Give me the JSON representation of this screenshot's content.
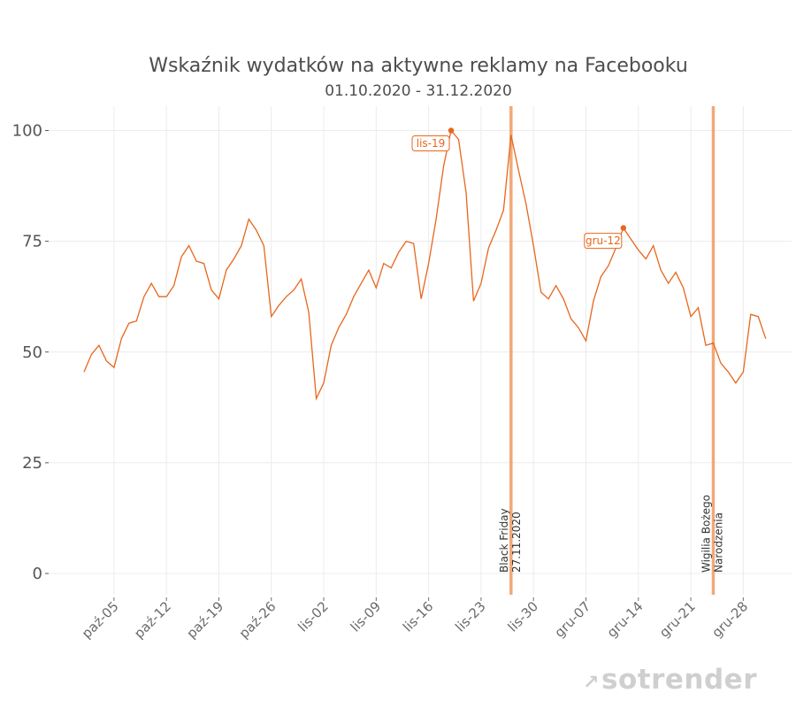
{
  "brand": {
    "mark": "↗",
    "name": "sotrender"
  },
  "chart_data": {
    "type": "line",
    "title": "Wskaźnik wydatków na aktywne reklamy na Facebooku",
    "subtitle": "01.10.2020 - 31.12.2020",
    "xlabel": "",
    "ylabel": "",
    "ylim": [
      -5,
      105
    ],
    "yticks": [
      0,
      25,
      50,
      75,
      100
    ],
    "x_start": "2020-10-01",
    "xticks": [
      {
        "date": "2020-10-05",
        "label": "paź-05"
      },
      {
        "date": "2020-10-12",
        "label": "paź-12"
      },
      {
        "date": "2020-10-19",
        "label": "paź-19"
      },
      {
        "date": "2020-10-26",
        "label": "paź-26"
      },
      {
        "date": "2020-11-02",
        "label": "lis-02"
      },
      {
        "date": "2020-11-09",
        "label": "lis-09"
      },
      {
        "date": "2020-11-16",
        "label": "lis-16"
      },
      {
        "date": "2020-11-23",
        "label": "lis-23"
      },
      {
        "date": "2020-11-30",
        "label": "lis-30"
      },
      {
        "date": "2020-12-07",
        "label": "gru-07"
      },
      {
        "date": "2020-12-14",
        "label": "gru-14"
      },
      {
        "date": "2020-12-21",
        "label": "gru-21"
      },
      {
        "date": "2020-12-28",
        "label": "gru-28"
      }
    ],
    "grid": true,
    "series": [
      {
        "color": "#e8661c",
        "values": [
          45.5,
          49.5,
          51.5,
          48,
          46.5,
          53,
          56.5,
          57,
          62.5,
          65.5,
          62.5,
          62.5,
          65,
          71.5,
          74,
          70.5,
          70,
          64,
          62,
          68.5,
          71,
          74,
          80,
          77.5,
          74,
          58,
          60.5,
          62.5,
          64,
          66.5,
          59,
          39.5,
          43,
          51.5,
          55.5,
          58.5,
          62.5,
          65.5,
          68.5,
          64.5,
          70,
          69,
          72.5,
          75,
          74.5,
          62,
          70,
          80,
          92,
          100,
          98,
          86,
          61.5,
          65.5,
          73.5,
          77.5,
          82,
          99,
          91,
          83.5,
          74,
          63.5,
          62,
          65,
          62,
          57.5,
          55.5,
          52.5,
          61.5,
          67,
          69.5,
          73.5,
          78,
          75.5,
          73,
          71,
          74,
          68.5,
          65.5,
          68,
          64.5,
          58,
          60,
          51.5,
          52,
          47.5,
          45.5,
          43,
          45.5,
          58.5,
          58,
          53
        ]
      }
    ],
    "peaks": [
      {
        "date": "2020-11-19",
        "value": 100,
        "label": "lis-19"
      },
      {
        "date": "2020-12-12",
        "value": 78,
        "label": "gru-12"
      }
    ],
    "events": [
      {
        "date": "2020-11-27",
        "lines": [
          "Black Friday",
          "27.11.2020"
        ]
      },
      {
        "date": "2020-12-24",
        "lines": [
          "Wigilia Bożego",
          "Narodzenia"
        ]
      }
    ]
  }
}
